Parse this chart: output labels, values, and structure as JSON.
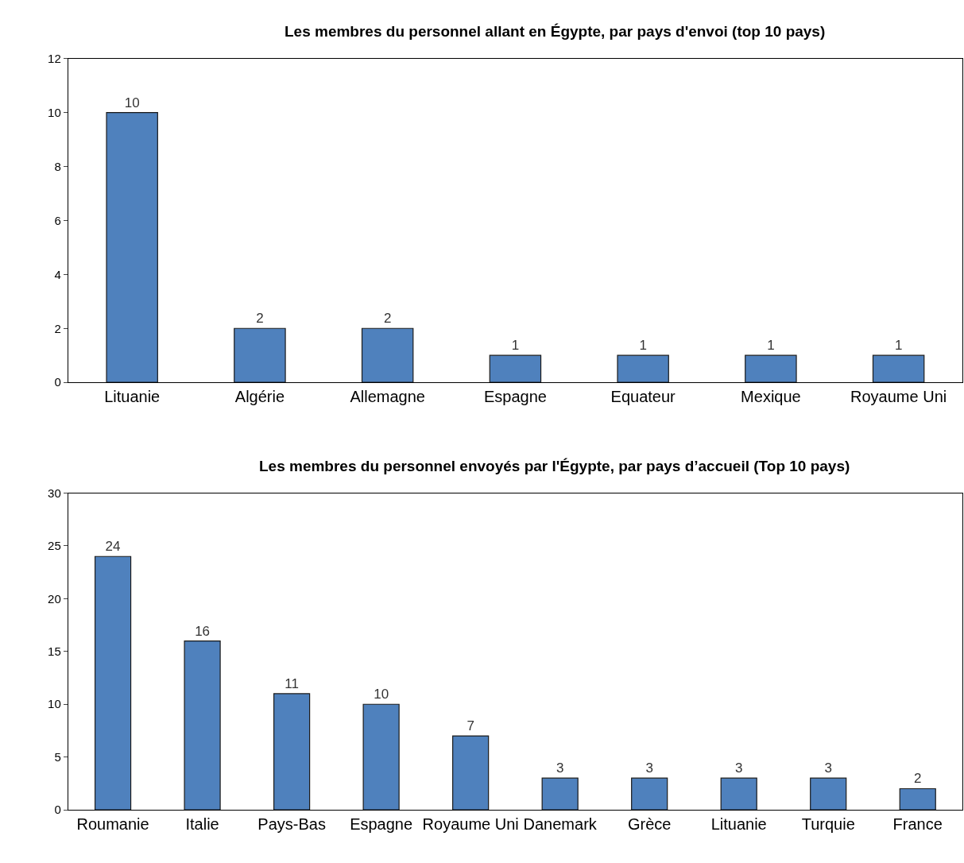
{
  "chart_data": [
    {
      "type": "bar",
      "title": "Les membres du personnel allant en Égypte, par pays d'envoi (top 10 pays)",
      "categories": [
        "Lituanie",
        "Algérie",
        "Allemagne",
        "Espagne",
        "Equateur",
        "Mexique",
        "Royaume Uni"
      ],
      "values": [
        10,
        2,
        2,
        1,
        1,
        1,
        1
      ],
      "color": "#4f81bd",
      "ylim": [
        0,
        12
      ],
      "yticks": [
        0,
        2,
        4,
        6,
        8,
        10,
        12
      ],
      "grid": false,
      "data_labels": true
    },
    {
      "type": "bar",
      "title": "Les membres du personnel envoyés par l'Égypte, par pays d’accueil (Top 10 pays)",
      "categories": [
        "Roumanie",
        "Italie",
        "Pays-Bas",
        "Espagne",
        "Royaume Uni",
        "Danemark",
        "Grèce",
        "Lituanie",
        "Turquie",
        "France"
      ],
      "values": [
        24,
        16,
        11,
        10,
        7,
        3,
        3,
        3,
        3,
        2
      ],
      "color": "#4f81bd",
      "ylim": [
        0,
        30
      ],
      "yticks": [
        0,
        5,
        10,
        15,
        20,
        25,
        30
      ],
      "grid": false,
      "data_labels": true
    }
  ]
}
